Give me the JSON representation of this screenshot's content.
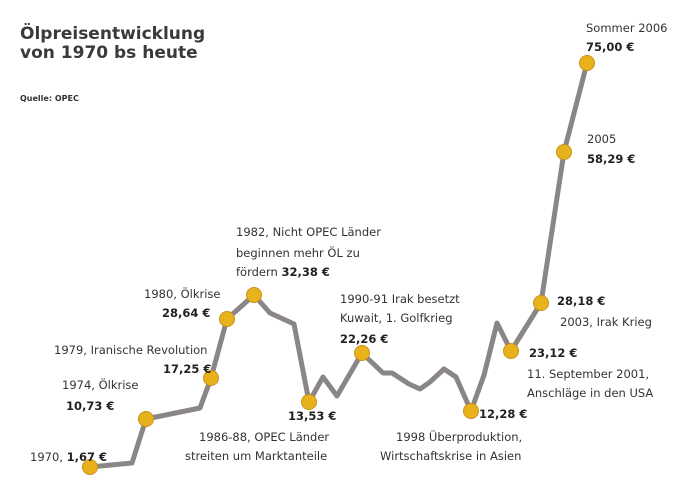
{
  "chart_data": {
    "type": "line",
    "title_line1": "Ölpreisentwicklung",
    "title_line2": "von 1970 bs heute",
    "source": "Quelle: OPEC",
    "colors": {
      "line": "#8a8686",
      "marker": "#e8b21d",
      "marker_edge": "#c9921a"
    },
    "line_path": [
      [
        1970,
        1.67
      ],
      [
        1972,
        2.2
      ],
      [
        1974,
        10.73
      ],
      [
        1978,
        12.8
      ],
      [
        1979,
        17.25
      ],
      [
        1980,
        28.64
      ],
      [
        1982,
        32.38
      ],
      [
        1983,
        29.3
      ],
      [
        1985,
        27.3
      ],
      [
        1986,
        13.53
      ],
      [
        1987,
        18.5
      ],
      [
        1988,
        15.0
      ],
      [
        1990,
        22.26
      ],
      [
        1991,
        18.3
      ],
      [
        1992,
        18.2
      ],
      [
        1993,
        16.3
      ],
      [
        1994,
        15.8
      ],
      [
        1995,
        16.9
      ],
      [
        1996,
        20.4
      ],
      [
        1997,
        19.6
      ],
      [
        1998,
        12.28
      ],
      [
        1999,
        17.8
      ],
      [
        2000,
        27.6
      ],
      [
        2001,
        23.12
      ],
      [
        2003,
        28.18
      ],
      [
        2005,
        58.29
      ],
      [
        2006,
        75.0
      ]
    ],
    "points": [
      {
        "x": 1970,
        "y": 1.67,
        "label": "1970,",
        "value": "1,67 €"
      },
      {
        "x": 1974,
        "y": 10.73,
        "label": "1974, Ölkrise",
        "value": "10,73 €"
      },
      {
        "x": 1979,
        "y": 17.25,
        "label": "1979, Iranische Revolution",
        "value": "17,25 €"
      },
      {
        "x": 1980,
        "y": 28.64,
        "label": "1980, Ölkrise",
        "value": "28,64 €"
      },
      {
        "x": 1982,
        "y": 32.38,
        "label_lines": [
          "1982, Nicht OPEC Länder",
          "beginnen mehr ÖL zu",
          "fördern"
        ],
        "value": "32,38 €"
      },
      {
        "x": 1986,
        "y": 13.53,
        "label_lines": [
          "1986-88, OPEC Länder",
          "streiten um Marktanteile"
        ],
        "value": "13,53 €"
      },
      {
        "x": 1990,
        "y": 22.26,
        "label_lines": [
          "1990-91 Irak besetzt",
          "Kuwait, 1. Golfkrieg"
        ],
        "value": "22,26 €"
      },
      {
        "x": 1998,
        "y": 12.28,
        "label_lines": [
          "1998 Überproduktion,",
          "Wirtschaftskrise in Asien"
        ],
        "value": "12,28 €"
      },
      {
        "x": 2001,
        "y": 23.12,
        "label_lines": [
          "11. September 2001,",
          "Anschläge in den USA"
        ],
        "value": "23,12 €"
      },
      {
        "x": 2003,
        "y": 28.18,
        "label": "2003, Irak Krieg",
        "value": "28,18 €"
      },
      {
        "x": 2005,
        "y": 58.29,
        "label": "2005",
        "value": "58,29 €"
      },
      {
        "x": 2006,
        "y": 75.0,
        "label": "Sommer 2006",
        "value": "75,00 €"
      }
    ]
  }
}
